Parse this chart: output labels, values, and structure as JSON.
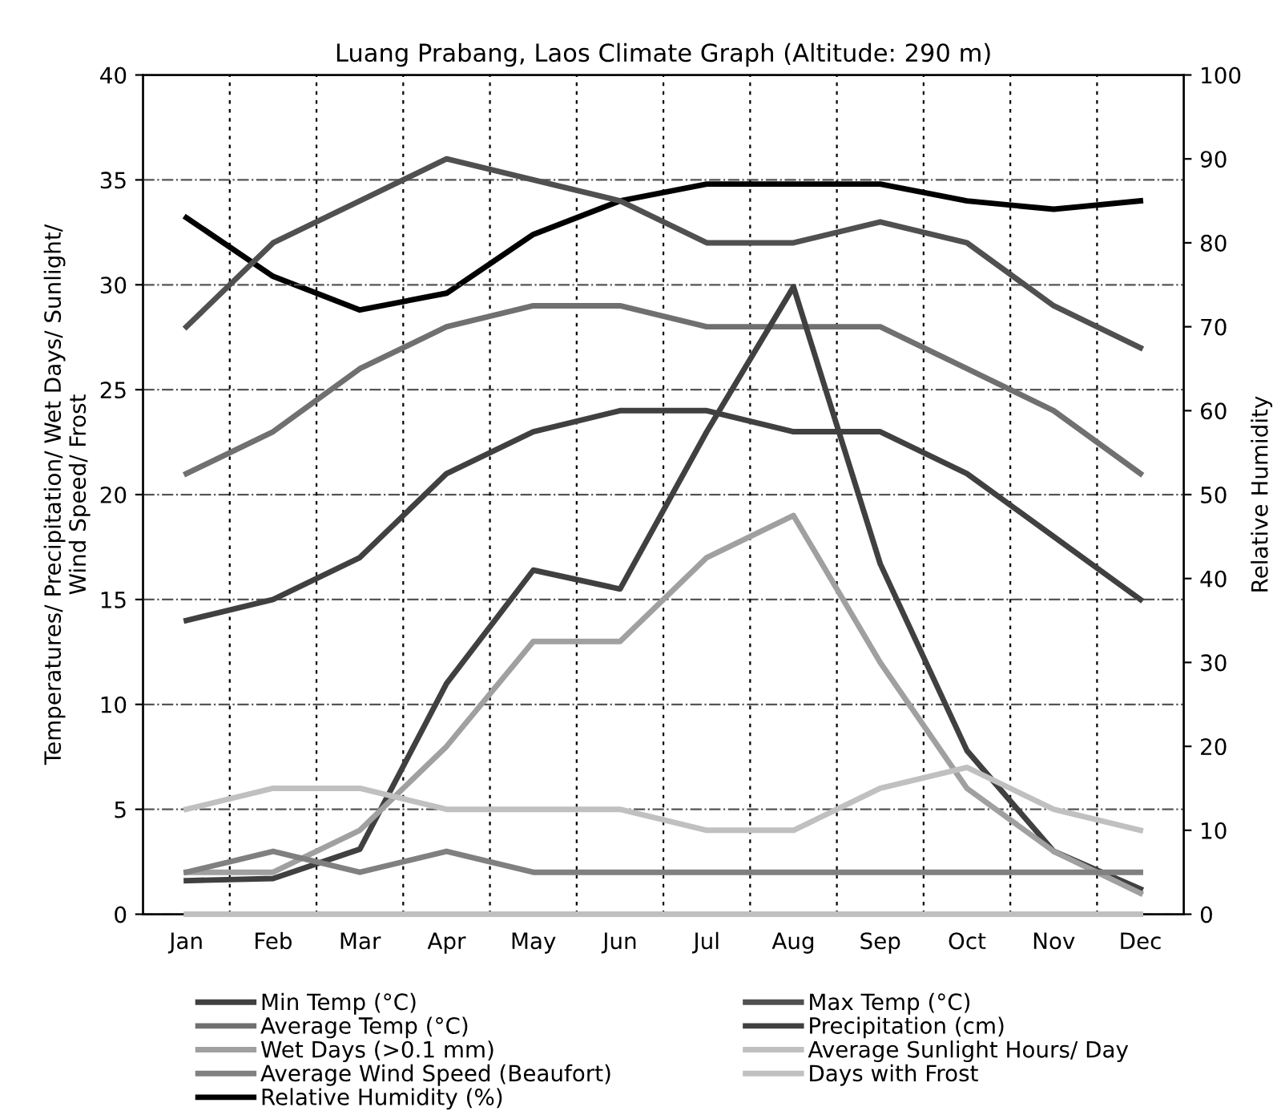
{
  "chart_data": {
    "type": "line",
    "title": "Luang Prabang, Laos Climate Graph (Altitude: 290 m)",
    "ylabel": "Temperatures/ Precipitation/ Wet Days/ Sunlight/\nWind Speed/ Frost",
    "y2label": "Relative Humidity",
    "categories": [
      "Jan",
      "Feb",
      "Mar",
      "Apr",
      "May",
      "Jun",
      "Jul",
      "Aug",
      "Sep",
      "Oct",
      "Nov",
      "Dec"
    ],
    "ylim": [
      0,
      40
    ],
    "yticks": [
      0,
      5,
      10,
      15,
      20,
      25,
      30,
      35,
      40
    ],
    "y2lim": [
      0,
      100
    ],
    "y2ticks": [
      0,
      10,
      20,
      30,
      40,
      50,
      60,
      70,
      80,
      90,
      100
    ],
    "grid": true,
    "legend": "bottom",
    "marker": "none",
    "line_style": "solid",
    "series": [
      {
        "name": "Min Temp (°C)",
        "color": "#404040",
        "values": [
          14,
          15,
          17,
          21,
          23,
          24,
          24,
          23,
          23,
          21,
          18,
          15
        ]
      },
      {
        "name": "Max Temp (°C)",
        "color": "#505050",
        "values": [
          28,
          32,
          34,
          36,
          35,
          34,
          32,
          32,
          33,
          32,
          29,
          27
        ]
      },
      {
        "name": "Average Temp (°C)",
        "color": "#707070",
        "values": [
          21,
          23,
          26,
          28,
          29,
          29,
          28,
          28,
          28,
          26,
          24,
          21
        ]
      },
      {
        "name": "Precipitation (cm)",
        "color": "#404040",
        "values": [
          1.6,
          1.7,
          3.1,
          11,
          16.4,
          15.5,
          23,
          29.9,
          16.7,
          7.8,
          3,
          1.2
        ]
      },
      {
        "name": "Wet Days (>0.1 mm)",
        "color": "#a0a0a0",
        "values": [
          2,
          2,
          4,
          8,
          13,
          13,
          17,
          19,
          12,
          6,
          3,
          1
        ]
      },
      {
        "name": "Average Sunlight Hours/ Day",
        "color": "#c0c0c0",
        "values": [
          5,
          6,
          6,
          5,
          5,
          5,
          4,
          4,
          6,
          7,
          5,
          4
        ]
      },
      {
        "name": "Average Wind Speed (Beaufort)",
        "color": "#808080",
        "values": [
          2,
          3,
          2,
          3,
          2,
          2,
          2,
          2,
          2,
          2,
          2,
          2
        ]
      },
      {
        "name": "Days with Frost",
        "color": "#c0c0c0",
        "values": [
          0,
          0,
          0,
          0,
          0,
          0,
          0,
          0,
          0,
          0,
          0,
          0
        ]
      },
      {
        "name": "Relative Humidity (%)",
        "color": "#000000",
        "axis": "y2",
        "values": [
          83,
          76,
          72,
          74,
          81,
          85,
          87,
          87,
          87,
          85,
          84,
          85
        ]
      }
    ]
  }
}
